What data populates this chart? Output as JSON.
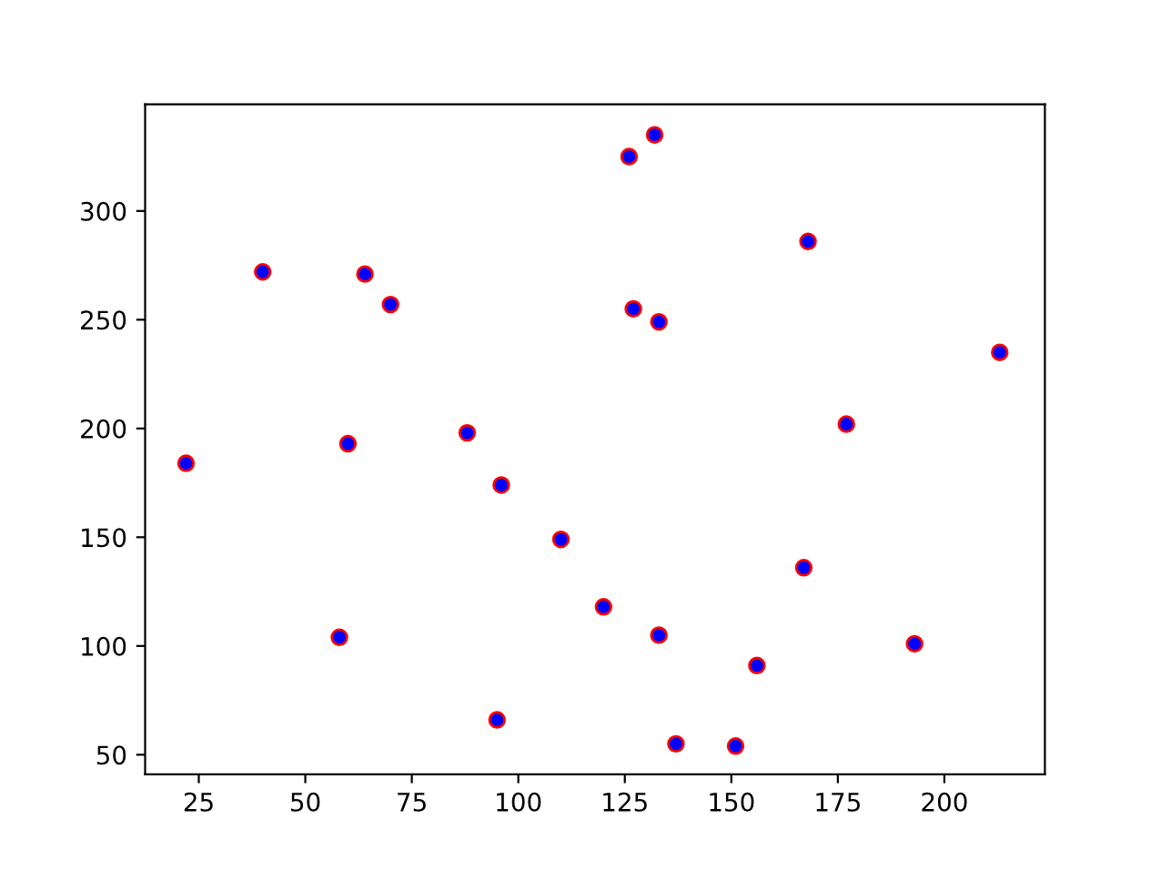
{
  "chart_data": {
    "type": "scatter",
    "x": [
      22,
      40,
      60,
      58,
      64,
      70,
      88,
      96,
      95,
      110,
      120,
      126,
      127,
      132,
      133,
      133,
      137,
      151,
      156,
      167,
      168,
      177,
      193,
      213
    ],
    "series": [
      {
        "color": "#0000ff",
        "values": [
          184,
          272,
          193,
          104,
          271,
          257,
          198,
          174,
          66,
          149,
          118,
          325,
          255,
          335,
          249,
          105,
          55,
          54,
          91,
          136,
          286,
          202,
          101,
          235
        ]
      }
    ],
    "xlim": [
      12.4,
      223.6
    ],
    "ylim": [
      41,
      349
    ],
    "xticks": [
      25,
      50,
      75,
      100,
      125,
      150,
      175,
      200
    ],
    "yticks": [
      50,
      100,
      150,
      200,
      250,
      300
    ],
    "marker": "circle",
    "grid": false,
    "legend": false
  }
}
